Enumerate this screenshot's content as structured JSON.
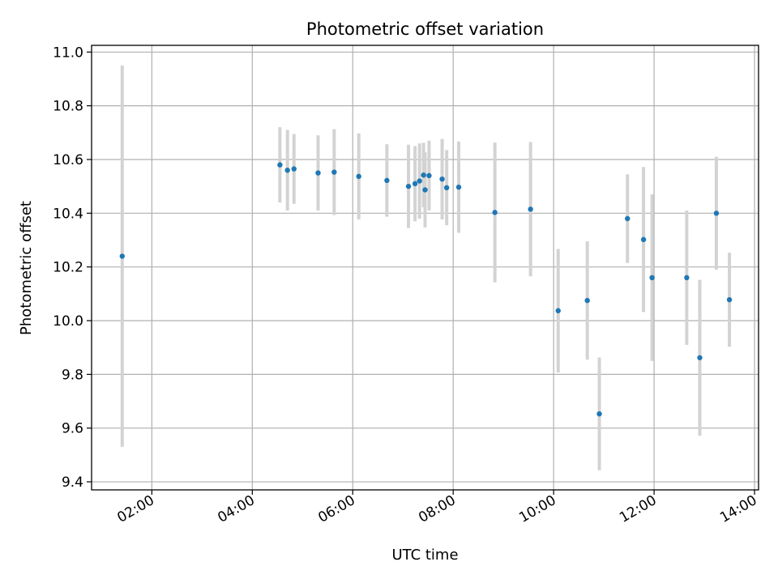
{
  "chart_data": {
    "type": "scatter",
    "title": "Photometric offset variation",
    "xlabel": "UTC time",
    "ylabel": "Photometric offset",
    "x_unit": "hours UTC",
    "xlim": [
      0.8,
      14.08
    ],
    "ylim": [
      9.37,
      11.025
    ],
    "grid": true,
    "colors": {
      "point": "#1f77b4",
      "errorbar": "#d3d3d3",
      "grid": "#b0b0b0",
      "frame": "#000000"
    },
    "xticks": [
      {
        "value": 2,
        "label": "02:00"
      },
      {
        "value": 4,
        "label": "04:00"
      },
      {
        "value": 6,
        "label": "06:00"
      },
      {
        "value": 8,
        "label": "08:00"
      },
      {
        "value": 10,
        "label": "10:00"
      },
      {
        "value": 12,
        "label": "12:00"
      },
      {
        "value": 14,
        "label": "14:00"
      }
    ],
    "yticks": [
      {
        "value": 9.4,
        "label": "9.4"
      },
      {
        "value": 9.6,
        "label": "9.6"
      },
      {
        "value": 9.8,
        "label": "9.8"
      },
      {
        "value": 10.0,
        "label": "10.0"
      },
      {
        "value": 10.2,
        "label": "10.2"
      },
      {
        "value": 10.4,
        "label": "10.4"
      },
      {
        "value": 10.6,
        "label": "10.6"
      },
      {
        "value": 10.8,
        "label": "10.8"
      },
      {
        "value": 11.0,
        "label": "11.0"
      }
    ],
    "points": [
      {
        "x": 1.41,
        "y": 10.24,
        "yerr": 0.71
      },
      {
        "x": 4.55,
        "y": 10.58,
        "yerr": 0.14
      },
      {
        "x": 4.7,
        "y": 10.56,
        "yerr": 0.15
      },
      {
        "x": 4.83,
        "y": 10.565,
        "yerr": 0.13
      },
      {
        "x": 5.31,
        "y": 10.55,
        "yerr": 0.14
      },
      {
        "x": 5.63,
        "y": 10.553,
        "yerr": 0.16
      },
      {
        "x": 6.12,
        "y": 10.537,
        "yerr": 0.16
      },
      {
        "x": 6.68,
        "y": 10.522,
        "yerr": 0.135
      },
      {
        "x": 7.11,
        "y": 10.5,
        "yerr": 0.155
      },
      {
        "x": 7.24,
        "y": 10.51,
        "yerr": 0.14
      },
      {
        "x": 7.33,
        "y": 10.52,
        "yerr": 0.14
      },
      {
        "x": 7.41,
        "y": 10.542,
        "yerr": 0.12
      },
      {
        "x": 7.44,
        "y": 10.487,
        "yerr": 0.14
      },
      {
        "x": 7.52,
        "y": 10.54,
        "yerr": 0.13
      },
      {
        "x": 7.78,
        "y": 10.527,
        "yerr": 0.15
      },
      {
        "x": 7.87,
        "y": 10.495,
        "yerr": 0.14
      },
      {
        "x": 8.11,
        "y": 10.497,
        "yerr": 0.17
      },
      {
        "x": 8.83,
        "y": 10.403,
        "yerr": 0.26
      },
      {
        "x": 9.54,
        "y": 10.415,
        "yerr": 0.25
      },
      {
        "x": 10.09,
        "y": 10.037,
        "yerr": 0.23
      },
      {
        "x": 10.67,
        "y": 10.075,
        "yerr": 0.22
      },
      {
        "x": 10.91,
        "y": 9.653,
        "yerr": 0.21
      },
      {
        "x": 11.47,
        "y": 10.38,
        "yerr": 0.165
      },
      {
        "x": 11.79,
        "y": 10.302,
        "yerr": 0.27
      },
      {
        "x": 11.96,
        "y": 10.16,
        "yerr": 0.31
      },
      {
        "x": 12.65,
        "y": 10.16,
        "yerr": 0.25
      },
      {
        "x": 12.91,
        "y": 9.862,
        "yerr": 0.29
      },
      {
        "x": 13.24,
        "y": 10.4,
        "yerr": 0.21
      },
      {
        "x": 13.5,
        "y": 10.078,
        "yerr": 0.175
      }
    ]
  }
}
